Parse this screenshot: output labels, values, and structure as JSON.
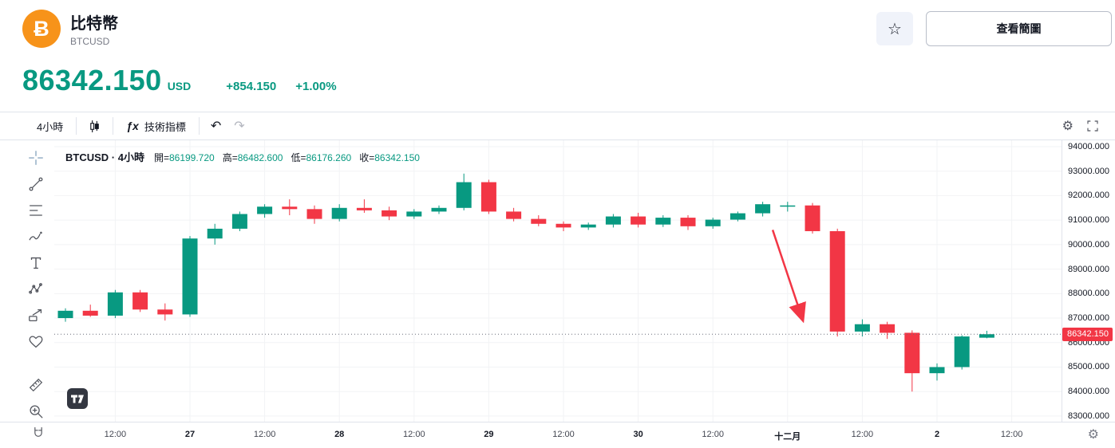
{
  "colors": {
    "up": "#089981",
    "down": "#f23645",
    "btc_orange": "#f7931a",
    "text_dark": "#131722",
    "text_muted": "#787b86",
    "grid": "#f2f3f5",
    "border": "#e0e3eb",
    "last_price_line": "#6b6f7b"
  },
  "header": {
    "title": "比特幣",
    "code": "BTCUSD",
    "btc_glyph": "Ƀ",
    "star_icon": "☆",
    "view_chart_button": "查看簡圖"
  },
  "quote": {
    "price": "86342.150",
    "currency": "USD",
    "change": "+854.150",
    "change_percent": "+1.00%"
  },
  "toolbar": {
    "interval": "4小時",
    "fx_icon": "ƒx",
    "indicators": "技術指標",
    "undo_icon": "↶",
    "redo_icon": "↷",
    "settings_icon": "⚙"
  },
  "legend": {
    "title": "BTCUSD · 4小時",
    "open_label": "開=",
    "open": "86199.720",
    "high_label": "高=",
    "high": "86482.600",
    "low_label": "低=",
    "low": "86176.260",
    "close_label": "收=",
    "close": "86342.150"
  },
  "sidebar_tools": [
    "crosshair",
    "trend-line",
    "fib-lines",
    "brush",
    "text",
    "xabcd-pattern",
    "forecast",
    "emoji-heart",
    "measure-ruler",
    "zoom-in",
    "magnet"
  ],
  "axis": {
    "price_tag": "86342.150",
    "settings_icon": "⚙"
  },
  "chart_data": {
    "type": "candlestick",
    "symbol": "BTCUSD",
    "interval": "4小時",
    "ylim": [
      82770,
      94260
    ],
    "y_ticks": [
      94000,
      93000,
      92000,
      91000,
      90000,
      89000,
      88000,
      87000,
      86000,
      85000,
      84000,
      83000
    ],
    "x_ticks": [
      {
        "i": 2,
        "label": "12:00",
        "major": false
      },
      {
        "i": 5,
        "label": "27",
        "major": true
      },
      {
        "i": 8,
        "label": "12:00",
        "major": false
      },
      {
        "i": 11,
        "label": "28",
        "major": true
      },
      {
        "i": 14,
        "label": "12:00",
        "major": false
      },
      {
        "i": 17,
        "label": "29",
        "major": true
      },
      {
        "i": 20,
        "label": "12:00",
        "major": false
      },
      {
        "i": 23,
        "label": "30",
        "major": true
      },
      {
        "i": 26,
        "label": "12:00",
        "major": false
      },
      {
        "i": 29,
        "label": "十二月",
        "major": true
      },
      {
        "i": 32,
        "label": "12:00",
        "major": false
      },
      {
        "i": 35,
        "label": "2",
        "major": true
      },
      {
        "i": 38,
        "label": "12:00",
        "major": false
      }
    ],
    "last_price": 86342.15,
    "candles": [
      [
        87000,
        87400,
        86850,
        87300
      ],
      [
        87300,
        87550,
        87050,
        87100
      ],
      [
        87100,
        88150,
        87000,
        88050
      ],
      [
        88050,
        88150,
        87250,
        87350
      ],
      [
        87350,
        87600,
        86900,
        87150
      ],
      [
        87150,
        90350,
        87050,
        90250
      ],
      [
        90250,
        90850,
        90000,
        90650
      ],
      [
        90650,
        91350,
        90550,
        91250
      ],
      [
        91250,
        91650,
        91100,
        91550
      ],
      [
        91550,
        91850,
        91200,
        91450
      ],
      [
        91450,
        91600,
        90850,
        91050
      ],
      [
        91050,
        91650,
        90950,
        91500
      ],
      [
        91500,
        91850,
        91300,
        91400
      ],
      [
        91400,
        91550,
        91000,
        91150
      ],
      [
        91150,
        91450,
        91050,
        91350
      ],
      [
        91350,
        91600,
        91250,
        91500
      ],
      [
        91500,
        92900,
        91400,
        92550
      ],
      [
        92550,
        92650,
        91250,
        91350
      ],
      [
        91350,
        91500,
        90950,
        91050
      ],
      [
        91050,
        91200,
        90750,
        90850
      ],
      [
        90850,
        90950,
        90550,
        90700
      ],
      [
        90700,
        90900,
        90600,
        90820
      ],
      [
        90820,
        91250,
        90700,
        91150
      ],
      [
        91150,
        91300,
        90700,
        90820
      ],
      [
        90820,
        91200,
        90720,
        91100
      ],
      [
        91100,
        91200,
        90600,
        90750
      ],
      [
        90750,
        91100,
        90650,
        91020
      ],
      [
        91020,
        91350,
        90950,
        91280
      ],
      [
        91280,
        91750,
        91150,
        91650
      ],
      [
        91550,
        91750,
        91350,
        91600
      ],
      [
        91600,
        91700,
        90450,
        90550
      ],
      [
        90550,
        90650,
        86250,
        86450
      ],
      [
        86450,
        86950,
        86250,
        86750
      ],
      [
        86750,
        86850,
        86150,
        86400
      ],
      [
        86400,
        86500,
        84000,
        84750
      ],
      [
        84750,
        85150,
        84450,
        85000
      ],
      [
        85000,
        86300,
        84900,
        86250
      ],
      [
        86199.72,
        86482.6,
        86176.26,
        86342.15
      ]
    ],
    "annotation_arrow": {
      "from_i": 28.4,
      "from_price": 90600,
      "to_i": 29.6,
      "to_price": 86950,
      "color": "#f23645"
    }
  }
}
